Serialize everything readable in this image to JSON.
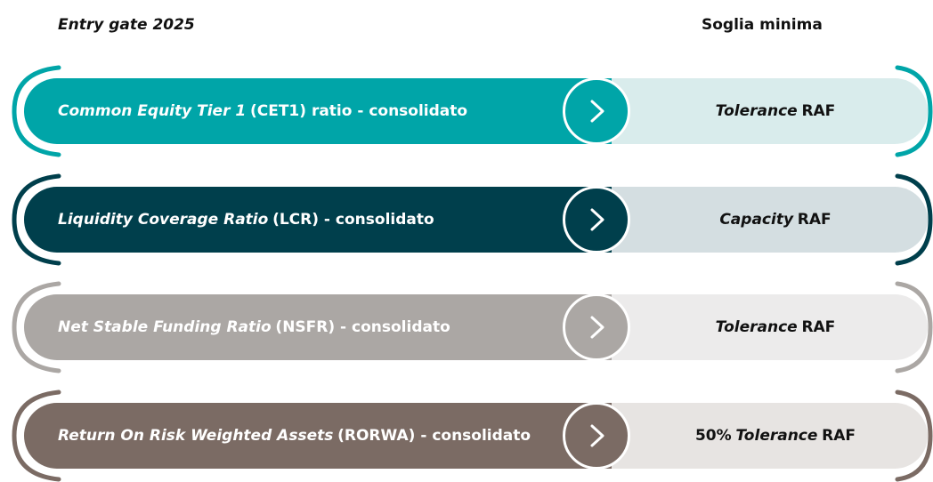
{
  "header": {
    "left": "Entry gate 2025",
    "right": "Soglia minima"
  },
  "rows": [
    {
      "label": [
        {
          "text": "Common Equity Tier 1",
          "italic": true
        },
        {
          "text": "(CET1) ratio - consolidato",
          "italic": false
        }
      ],
      "threshold": [
        {
          "text": "Tolerance",
          "italic": true
        },
        {
          "text": "RAF",
          "italic": false
        }
      ],
      "color": "#00a5a8",
      "light": "#d9ecec"
    },
    {
      "label": [
        {
          "text": "Liquidity Coverage Ratio",
          "italic": true
        },
        {
          "text": "(LCR) - consolidato",
          "italic": false
        }
      ],
      "threshold": [
        {
          "text": "Capacity",
          "italic": true
        },
        {
          "text": "RAF",
          "italic": false
        }
      ],
      "color": "#003f4c",
      "light": "#d4dee1"
    },
    {
      "label": [
        {
          "text": "Net Stable Funding Ratio",
          "italic": true
        },
        {
          "text": "(NSFR) - consolidato",
          "italic": false
        }
      ],
      "threshold": [
        {
          "text": "Tolerance",
          "italic": true
        },
        {
          "text": "RAF",
          "italic": false
        }
      ],
      "color": "#aba7a4",
      "light": "#ecebeb"
    },
    {
      "label": [
        {
          "text": "Return On Risk Weighted Assets",
          "italic": true
        },
        {
          "text": "(RORWA) - consolidato",
          "italic": false
        }
      ],
      "threshold": [
        {
          "text": "50%",
          "italic": false
        },
        {
          "text": "Tolerance",
          "italic": true
        },
        {
          "text": "RAF",
          "italic": false
        }
      ],
      "color": "#7b6b64",
      "light": "#e7e4e2"
    }
  ]
}
